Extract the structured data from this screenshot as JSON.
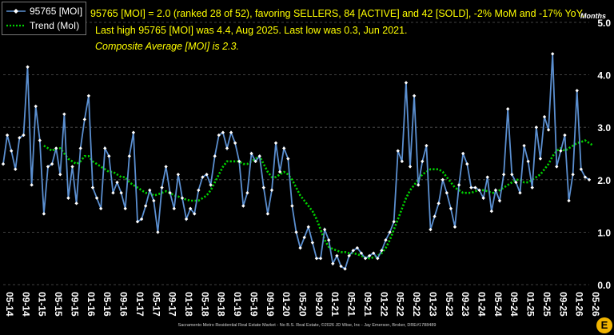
{
  "header": {
    "line1": "95765 [MOI] = 2.0 (ranked 28 of 52), favoring SELLERS, 84 [ACTIVE] and 42 [SOLD], -2% MoM and -17% YoY.",
    "line2": "Last high 95765 [MOI] was 4.4, Aug 2025. Last low was 0.3, Jun 2021.",
    "line3": "Composite Average [MOI] is 2.3."
  },
  "unit_label": "Months",
  "footer": "Sacramento Metro Residential Real Estate Market - No B.S. Real Estate, ©2026 JD Wise, Inc - Jay Emerson, Broker, DRE#1788489",
  "logo_text": "E",
  "colors": {
    "series": "#5b8fd0",
    "trend": "#00d000",
    "header": "#ffff00",
    "axis": "#ffffff"
  },
  "chart_data": {
    "type": "line",
    "legend_position": "top-left",
    "grid": "horizontal dashed",
    "ylim": [
      0,
      5
    ],
    "yticks": [
      "0.0",
      "1.0",
      "2.0",
      "3.0",
      "4.0",
      "5.0"
    ],
    "xtick_labels": [
      "05-14",
      "09-14",
      "01-15",
      "05-15",
      "09-15",
      "01-16",
      "05-16",
      "09-16",
      "01-17",
      "05-17",
      "09-17",
      "01-18",
      "05-18",
      "09-18",
      "01-19",
      "05-19",
      "09-19",
      "01-20",
      "05-20",
      "09-20",
      "01-21",
      "05-21",
      "09-21",
      "01-22",
      "05-22",
      "09-22",
      "01-23",
      "05-23",
      "09-23",
      "01-24",
      "05-24",
      "09-24",
      "01-25",
      "05-25",
      "09-25",
      "01-26",
      "05-26"
    ],
    "series": [
      {
        "name": "95765 [MOI]",
        "style": "line-markers",
        "values": [
          2.3,
          2.85,
          2.55,
          2.2,
          2.8,
          2.85,
          4.15,
          1.9,
          3.4,
          2.75,
          1.35,
          2.25,
          2.3,
          2.6,
          2.1,
          3.25,
          1.65,
          2.25,
          1.55,
          2.6,
          3.15,
          3.6,
          1.85,
          1.65,
          1.45,
          2.6,
          2.45,
          1.75,
          1.95,
          1.75,
          1.45,
          2.45,
          2.9,
          1.2,
          1.25,
          1.5,
          1.8,
          1.6,
          1.0,
          1.85,
          2.25,
          1.75,
          1.45,
          2.1,
          1.65,
          1.25,
          1.45,
          1.35,
          1.8,
          2.05,
          2.1,
          1.9,
          2.45,
          2.85,
          2.9,
          2.6,
          2.9,
          2.7,
          2.35,
          1.5,
          1.75,
          2.5,
          2.35,
          2.45,
          1.85,
          1.35,
          1.8,
          2.7,
          2.15,
          2.6,
          2.4,
          1.5,
          1.0,
          0.7,
          0.9,
          1.1,
          0.8,
          0.5,
          0.5,
          1.05,
          0.85,
          0.4,
          0.55,
          0.35,
          0.3,
          0.55,
          0.65,
          0.7,
          0.6,
          0.5,
          0.55,
          0.6,
          0.5,
          0.65,
          0.85,
          1.0,
          1.2,
          2.55,
          2.35,
          3.85,
          2.25,
          3.6,
          1.9,
          2.35,
          2.65,
          1.05,
          1.3,
          1.55,
          2.0,
          1.75,
          1.45,
          1.1,
          1.9,
          2.5,
          2.3,
          1.85,
          1.85,
          1.8,
          1.65,
          2.05,
          1.4,
          1.8,
          1.6,
          2.1,
          3.35,
          2.1,
          1.95,
          1.75,
          2.65,
          2.35,
          1.85,
          3.0,
          2.4,
          3.2,
          2.95,
          4.4,
          2.25,
          2.55,
          2.85,
          1.6,
          2.1,
          3.7,
          2.2,
          2.05,
          2.0
        ]
      },
      {
        "name": "Trend (MoI)",
        "style": "dotted",
        "values": [
          null,
          null,
          null,
          null,
          null,
          null,
          null,
          null,
          null,
          null,
          2.65,
          2.6,
          2.55,
          2.6,
          2.6,
          2.5,
          2.4,
          2.35,
          2.3,
          2.35,
          2.45,
          2.45,
          2.35,
          2.3,
          2.25,
          2.2,
          2.15,
          2.15,
          2.1,
          2.05,
          2.05,
          1.95,
          1.9,
          1.85,
          1.8,
          1.75,
          1.75,
          1.7,
          1.72,
          1.75,
          1.78,
          1.75,
          1.7,
          1.68,
          1.65,
          1.62,
          1.6,
          1.6,
          1.6,
          1.65,
          1.7,
          1.8,
          1.95,
          2.1,
          2.25,
          2.35,
          2.35,
          2.35,
          2.35,
          2.3,
          2.3,
          2.35,
          2.4,
          2.45,
          2.3,
          2.15,
          2.05,
          2.05,
          2.1,
          2.15,
          2.1,
          2.0,
          1.85,
          1.7,
          1.6,
          1.5,
          1.4,
          1.25,
          1.05,
          0.85,
          0.72,
          0.68,
          0.65,
          0.62,
          0.62,
          0.6,
          0.6,
          0.58,
          0.55,
          0.52,
          0.5,
          0.52,
          0.55,
          0.6,
          0.7,
          0.85,
          1.05,
          1.25,
          1.45,
          1.65,
          1.8,
          1.9,
          2.0,
          2.1,
          2.15,
          2.2,
          2.2,
          2.2,
          2.15,
          2.05,
          1.95,
          1.85,
          1.8,
          1.75,
          1.75,
          1.75,
          1.78,
          1.8,
          1.8,
          1.78,
          1.75,
          1.75,
          1.8,
          1.85,
          1.9,
          1.95,
          2.0,
          2.0,
          1.95,
          1.95,
          2.0,
          2.05,
          2.1,
          2.2,
          2.3,
          2.45,
          2.55,
          2.6,
          2.55,
          2.6,
          2.65,
          2.7,
          2.72,
          2.75,
          2.7,
          2.65
        ]
      }
    ]
  }
}
